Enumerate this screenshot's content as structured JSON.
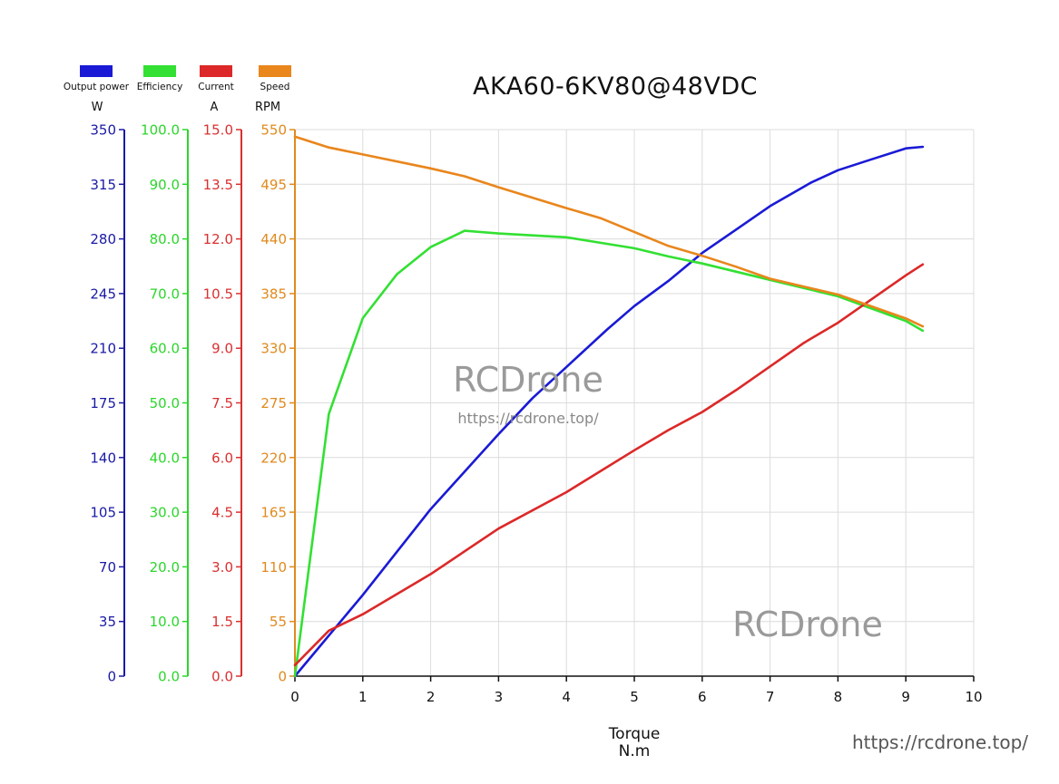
{
  "chart_data": {
    "type": "line",
    "title": "AKA60-6KV80@48VDC",
    "xlabel": [
      "Torque",
      "N.m"
    ],
    "xlim": [
      0,
      10
    ],
    "xticks": [
      "0",
      "1",
      "2",
      "3",
      "4",
      "5",
      "6",
      "7",
      "8",
      "9",
      "10"
    ],
    "grid": true,
    "legend_position": "top-left",
    "axes": [
      {
        "key": "power",
        "unit": "W",
        "ylim": [
          0,
          350
        ],
        "color": "#1a1aa6",
        "ticks": [
          "0",
          "35",
          "70",
          "105",
          "140",
          "175",
          "210",
          "245",
          "280",
          "315",
          "350"
        ]
      },
      {
        "key": "efficiency",
        "unit": "",
        "ylim": [
          0,
          100
        ],
        "color": "#2bd62b",
        "ticks": [
          "0.0",
          "10.0",
          "20.0",
          "30.0",
          "40.0",
          "50.0",
          "60.0",
          "70.0",
          "80.0",
          "90.0",
          "100.0"
        ]
      },
      {
        "key": "current",
        "unit": "A",
        "ylim": [
          0,
          15
        ],
        "color": "#d93030",
        "ticks": [
          "0.0",
          "1.5",
          "3.0",
          "4.5",
          "6.0",
          "7.5",
          "9.0",
          "10.5",
          "12.0",
          "13.5",
          "15.0"
        ]
      },
      {
        "key": "speed",
        "unit": "RPM",
        "ylim": [
          0,
          550
        ],
        "color": "#e08a1e",
        "ticks": [
          "0",
          "55",
          "110",
          "165",
          "220",
          "275",
          "330",
          "385",
          "440",
          "495",
          "550"
        ]
      }
    ],
    "series": [
      {
        "name": "Output power",
        "axis": "power",
        "color": "#1a1ad6",
        "x": [
          0,
          1,
          2,
          3,
          3.5,
          4,
          4.6,
          5,
          5.5,
          6,
          6.5,
          7,
          7.6,
          8,
          8.5,
          9,
          9.25
        ],
        "y": [
          0,
          52,
          107,
          155,
          178,
          198,
          222,
          237,
          253,
          271,
          286,
          301,
          316,
          324,
          331,
          338,
          339
        ]
      },
      {
        "name": "Efficiency",
        "axis": "efficiency",
        "color": "#33e033",
        "x": [
          0,
          0.5,
          1,
          1.5,
          2,
          2.5,
          3,
          4,
          5,
          5.5,
          6,
          7,
          8,
          9,
          9.25
        ],
        "y": [
          0,
          48,
          65.5,
          73.5,
          78.5,
          81.5,
          81,
          80.3,
          78.3,
          76.8,
          75.5,
          72.5,
          69.5,
          65,
          63.2
        ]
      },
      {
        "name": "Current",
        "axis": "current",
        "color": "#dc2828",
        "x": [
          0,
          0.5,
          1,
          2,
          3,
          4,
          5,
          5.5,
          6,
          6.5,
          7,
          7.5,
          8,
          8.5,
          9,
          9.25
        ],
        "y": [
          0.3,
          1.25,
          1.7,
          2.8,
          4.05,
          5.05,
          6.2,
          6.75,
          7.25,
          7.85,
          8.5,
          9.15,
          9.7,
          10.35,
          11.0,
          11.3
        ]
      },
      {
        "name": "Speed",
        "axis": "speed",
        "color": "#e9861c",
        "x": [
          0,
          0.5,
          1,
          2,
          2.5,
          3,
          4,
          4.5,
          5,
          5.5,
          6,
          6.5,
          7,
          8,
          9,
          9.25
        ],
        "y": [
          543,
          532,
          525,
          511,
          503,
          492,
          471,
          461,
          447,
          433,
          423,
          412,
          400,
          384,
          360,
          352
        ]
      }
    ],
    "watermarks": [
      "RCDrone",
      "https://rcdrone.top/",
      "RCDrone",
      "https://rcdrone.top/"
    ]
  }
}
